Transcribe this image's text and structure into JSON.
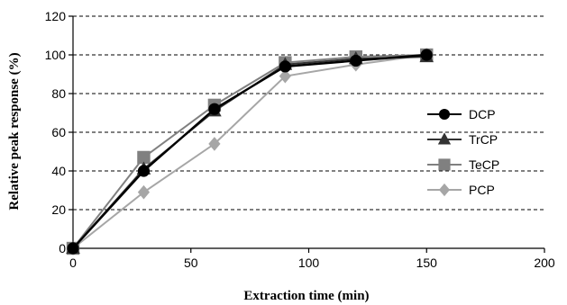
{
  "chart_data": {
    "type": "line",
    "xlabel": "Extraction time (min)",
    "ylabel": "Relative peak response (%)",
    "xlim": [
      0,
      200
    ],
    "ylim": [
      0,
      120
    ],
    "xticks": [
      "0",
      "50",
      "100",
      "150",
      "200"
    ],
    "yticks": [
      "0",
      "20",
      "40",
      "60",
      "80",
      "100",
      "120"
    ],
    "grid": "horizontal dashed",
    "legend_position": "right",
    "series": [
      {
        "name": "DCP",
        "marker": "circle",
        "color": "#000000",
        "x": [
          0,
          30,
          60,
          90,
          120,
          150
        ],
        "y": [
          0,
          40,
          72,
          94,
          97,
          100
        ]
      },
      {
        "name": "TrCP",
        "marker": "triangle",
        "color": "#333333",
        "x": [
          0,
          30,
          60,
          90,
          120,
          150
        ],
        "y": [
          0,
          41,
          71,
          95,
          98,
          99
        ]
      },
      {
        "name": "TeCP",
        "marker": "square",
        "color": "#808080",
        "x": [
          0,
          30,
          60,
          90,
          120,
          150
        ],
        "y": [
          0,
          47,
          74,
          96,
          99,
          100
        ]
      },
      {
        "name": "PCP",
        "marker": "diamond",
        "color": "#a6a6a6",
        "x": [
          0,
          30,
          60,
          90,
          120,
          150
        ],
        "y": [
          0,
          29,
          54,
          89,
          95,
          100
        ]
      }
    ]
  }
}
